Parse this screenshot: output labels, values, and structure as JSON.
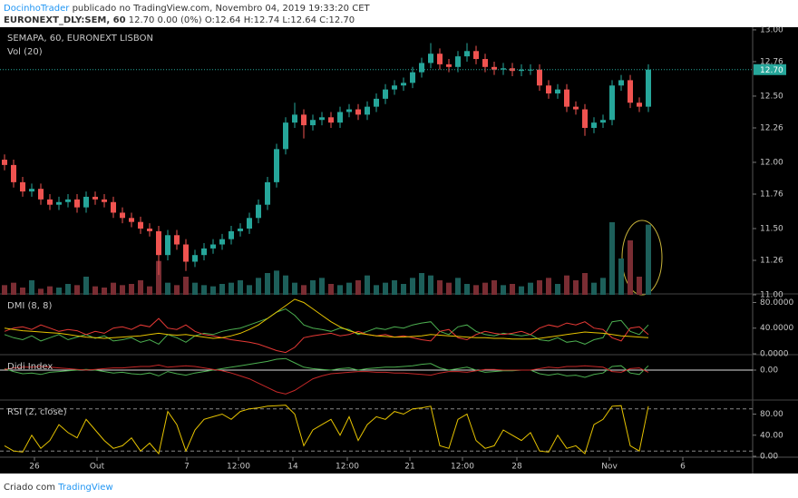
{
  "header": {
    "author": "DocinhoTrader",
    "published": "publicado no TradingView.com, Novembro 04, 2019 19:33:20 CET",
    "symbol": "EURONEXT_DLY:SEM, 60",
    "quote": "12.70 0.00 (0%) O:12.64 H:12.74 L:12.64 C:12.70"
  },
  "footer": {
    "created": "Criado com",
    "brand": "TradingView"
  },
  "chart_data": [
    {
      "type": "candlestick",
      "title": "SEMAPA, 60, EURONEXT LISBON",
      "subtitle": "Vol (20)",
      "up_color": "#26a69a",
      "down_color": "#ef5350",
      "up_volume_color": "#1d5f5a",
      "down_volume_color": "#7a2d33",
      "ylim": [
        11.0,
        13.02
      ],
      "yticks": [
        {
          "value": 13,
          "label": "13.00"
        },
        12.76,
        {
          "value": 12.5,
          "label": "12.50"
        },
        12.26,
        {
          "value": 12,
          "label": "12.00"
        },
        11.76,
        {
          "value": 11.5,
          "label": "11.50"
        },
        11.26,
        {
          "value": 11,
          "label": "11.00"
        }
      ],
      "last_price": {
        "value": 12.7,
        "label": "12.70"
      },
      "open": [
        12.02,
        11.98,
        11.85,
        11.78,
        11.8,
        11.72,
        11.68,
        11.7,
        11.72,
        11.66,
        11.74,
        11.72,
        11.7,
        11.62,
        11.58,
        11.55,
        11.5,
        11.48,
        11.3,
        11.45,
        11.38,
        11.25,
        11.3,
        11.35,
        11.38,
        11.42,
        11.48,
        11.5,
        11.58,
        11.68,
        11.85,
        12.1,
        12.3,
        12.36,
        12.28,
        12.32,
        12.34,
        12.3,
        12.38,
        12.4,
        12.36,
        12.42,
        12.48,
        12.55,
        12.58,
        12.6,
        12.68,
        12.75,
        12.82,
        12.74,
        12.72,
        12.8,
        12.84,
        12.78,
        12.72,
        12.7,
        12.71,
        12.69,
        12.7,
        12.7,
        12.58,
        12.52,
        12.55,
        12.42,
        12.4,
        12.26,
        12.3,
        12.32,
        12.58,
        12.62,
        12.45,
        12.42
      ],
      "high": [
        12.06,
        12.02,
        11.89,
        11.84,
        11.84,
        11.76,
        11.74,
        11.76,
        11.76,
        11.78,
        11.78,
        11.76,
        11.74,
        11.66,
        11.62,
        11.59,
        11.54,
        11.52,
        11.49,
        11.49,
        11.42,
        11.34,
        11.39,
        11.42,
        11.46,
        11.52,
        11.54,
        11.62,
        11.72,
        11.89,
        12.14,
        12.34,
        12.45,
        12.4,
        12.36,
        12.38,
        12.38,
        12.42,
        12.44,
        12.44,
        12.46,
        12.52,
        12.59,
        12.62,
        12.64,
        12.72,
        12.79,
        12.9,
        12.86,
        12.78,
        12.84,
        12.9,
        12.88,
        12.82,
        12.76,
        12.75,
        12.75,
        12.74,
        12.74,
        12.74,
        12.62,
        12.59,
        12.59,
        12.46,
        12.44,
        12.34,
        12.36,
        12.62,
        12.66,
        12.66,
        12.49,
        12.74
      ],
      "low": [
        11.94,
        11.81,
        11.74,
        11.74,
        11.68,
        11.64,
        11.64,
        11.66,
        11.62,
        11.62,
        11.68,
        11.66,
        11.58,
        11.54,
        11.51,
        11.46,
        11.44,
        11.15,
        11.26,
        11.34,
        11.18,
        11.21,
        11.26,
        11.31,
        11.34,
        11.38,
        11.44,
        11.46,
        11.54,
        11.64,
        11.81,
        12.06,
        12.26,
        12.18,
        12.24,
        12.28,
        12.26,
        12.26,
        12.34,
        12.32,
        12.32,
        12.38,
        12.44,
        12.51,
        12.54,
        12.56,
        12.64,
        12.71,
        12.7,
        12.68,
        12.68,
        12.76,
        12.74,
        12.68,
        12.66,
        12.66,
        12.65,
        12.65,
        12.66,
        12.54,
        12.48,
        12.48,
        12.38,
        12.36,
        12.2,
        12.22,
        12.26,
        12.28,
        12.54,
        12.41,
        12.38,
        12.38
      ],
      "close": [
        11.98,
        11.85,
        11.78,
        11.8,
        11.72,
        11.68,
        11.7,
        11.72,
        11.66,
        11.74,
        11.72,
        11.7,
        11.62,
        11.58,
        11.55,
        11.5,
        11.48,
        11.3,
        11.45,
        11.38,
        11.25,
        11.3,
        11.35,
        11.38,
        11.42,
        11.48,
        11.5,
        11.58,
        11.68,
        11.85,
        12.1,
        12.3,
        12.36,
        12.28,
        12.32,
        12.34,
        12.3,
        12.38,
        12.4,
        12.36,
        12.42,
        12.48,
        12.55,
        12.58,
        12.6,
        12.68,
        12.75,
        12.82,
        12.74,
        12.72,
        12.8,
        12.84,
        12.78,
        12.72,
        12.7,
        12.71,
        12.69,
        12.7,
        12.7,
        12.58,
        12.52,
        12.55,
        12.42,
        12.4,
        12.26,
        12.3,
        12.32,
        12.58,
        12.62,
        12.45,
        12.42,
        12.7
      ],
      "volume": [
        8,
        10,
        6,
        12,
        5,
        7,
        6,
        9,
        8,
        15,
        7,
        6,
        10,
        8,
        9,
        12,
        7,
        28,
        10,
        8,
        15,
        10,
        8,
        7,
        9,
        10,
        12,
        8,
        14,
        18,
        20,
        16,
        10,
        8,
        12,
        14,
        9,
        8,
        10,
        12,
        16,
        8,
        10,
        12,
        9,
        14,
        18,
        16,
        12,
        10,
        14,
        9,
        8,
        10,
        12,
        8,
        9,
        7,
        10,
        12,
        14,
        9,
        16,
        12,
        18,
        10,
        14,
        60,
        30,
        45,
        15,
        58
      ]
    },
    {
      "type": "line",
      "title": "DMI (8, 8)",
      "ylim": [
        0,
        92
      ],
      "yticks": [
        {
          "value": 80,
          "label": "80.0000"
        },
        {
          "value": 40,
          "label": "40.0000"
        },
        {
          "value": 0,
          "label": "0.0000"
        }
      ],
      "series": [
        {
          "color": "#4caf50",
          "values": [
            30,
            25,
            22,
            28,
            20,
            25,
            30,
            22,
            26,
            30,
            24,
            28,
            20,
            22,
            25,
            18,
            22,
            15,
            30,
            25,
            18,
            28,
            32,
            30,
            35,
            38,
            40,
            45,
            50,
            55,
            65,
            70,
            60,
            45,
            40,
            38,
            35,
            40,
            38,
            30,
            35,
            40,
            38,
            42,
            40,
            45,
            48,
            50,
            35,
            30,
            42,
            45,
            35,
            30,
            28,
            32,
            30,
            28,
            30,
            22,
            20,
            25,
            18,
            20,
            15,
            22,
            25,
            50,
            52,
            35,
            30,
            45
          ]
        },
        {
          "color": "#e53935",
          "values": [
            35,
            40,
            42,
            38,
            45,
            40,
            35,
            38,
            36,
            30,
            35,
            32,
            40,
            42,
            38,
            45,
            42,
            55,
            40,
            38,
            45,
            35,
            30,
            28,
            25,
            22,
            20,
            18,
            15,
            10,
            5,
            2,
            10,
            25,
            28,
            30,
            32,
            28,
            30,
            35,
            30,
            28,
            30,
            26,
            28,
            25,
            22,
            20,
            35,
            38,
            25,
            22,
            30,
            35,
            32,
            30,
            32,
            35,
            30,
            40,
            45,
            42,
            48,
            45,
            50,
            40,
            38,
            25,
            20,
            40,
            42,
            30
          ]
        },
        {
          "color": "#e6c300",
          "values": [
            40,
            38,
            36,
            35,
            34,
            33,
            32,
            30,
            28,
            26,
            25,
            24,
            25,
            26,
            27,
            28,
            30,
            32,
            30,
            29,
            30,
            28,
            26,
            24,
            25,
            28,
            32,
            38,
            45,
            55,
            65,
            75,
            85,
            80,
            70,
            60,
            50,
            42,
            36,
            32,
            30,
            28,
            27,
            26,
            26,
            27,
            28,
            30,
            29,
            28,
            27,
            26,
            25,
            25,
            24,
            24,
            23,
            23,
            23,
            24,
            26,
            28,
            30,
            32,
            34,
            33,
            32,
            30,
            28,
            27,
            26,
            25
          ]
        }
      ]
    },
    {
      "type": "line",
      "title": "Didi Index",
      "ylim": [
        -0.4,
        0.2
      ],
      "grid": true,
      "yticks": [
        {
          "value": 0,
          "label": "0.00"
        }
      ],
      "series": [
        {
          "color": "#4caf50",
          "values": [
            0.02,
            -0.02,
            -0.05,
            -0.04,
            -0.06,
            -0.03,
            -0.02,
            -0.01,
            0,
            0.01,
            0,
            -0.02,
            -0.04,
            -0.03,
            -0.05,
            -0.06,
            -0.04,
            -0.08,
            -0.02,
            -0.05,
            -0.07,
            -0.04,
            -0.02,
            0,
            0.02,
            0.04,
            0.06,
            0.08,
            0.1,
            0.12,
            0.15,
            0.16,
            0.1,
            0.04,
            0.02,
            0.01,
            0,
            0.02,
            0.03,
            0,
            0.02,
            0.03,
            0.04,
            0.04,
            0.05,
            0.06,
            0.08,
            0.09,
            0.03,
            0,
            0.02,
            0.04,
            0,
            -0.03,
            -0.02,
            -0.01,
            -0.01,
            0,
            0,
            -0.05,
            -0.07,
            -0.05,
            -0.08,
            -0.07,
            -0.1,
            -0.06,
            -0.04,
            0.05,
            0.06,
            -0.04,
            -0.06,
            0.06
          ]
        },
        {
          "color": "#c62828",
          "values": [
            0.01,
            0.03,
            0.04,
            0.04,
            0.05,
            0.04,
            0.03,
            0.02,
            0.01,
            0,
            0.01,
            0.02,
            0.03,
            0.03,
            0.04,
            0.05,
            0.05,
            0.07,
            0.04,
            0.05,
            0.06,
            0.05,
            0.03,
            0.01,
            -0.01,
            -0.04,
            -0.08,
            -0.12,
            -0.18,
            -0.24,
            -0.3,
            -0.33,
            -0.28,
            -0.2,
            -0.12,
            -0.08,
            -0.05,
            -0.04,
            -0.03,
            -0.02,
            -0.02,
            -0.03,
            -0.03,
            -0.04,
            -0.04,
            -0.05,
            -0.06,
            -0.07,
            -0.04,
            -0.02,
            -0.02,
            -0.03,
            -0.01,
            0.01,
            0.01,
            0,
            0,
            0,
            0,
            0.02,
            0.04,
            0.03,
            0.05,
            0.05,
            0.06,
            0.05,
            0.04,
            -0.02,
            -0.03,
            0.02,
            0.03,
            -0.03
          ]
        }
      ]
    },
    {
      "type": "line",
      "title": "RSI (2, close)",
      "ylim": [
        0,
        105
      ],
      "levels": [
        90,
        10
      ],
      "yticks": [
        {
          "value": 80,
          "label": "80.00"
        },
        {
          "value": 40,
          "label": "40.00"
        },
        {
          "value": 0,
          "label": "0.00"
        }
      ],
      "xlim": [
        -0.5,
        82.5
      ],
      "xticks": [
        {
          "value": 3.3,
          "label": "26"
        },
        {
          "value": 10.2,
          "label": "Out"
        },
        {
          "value": 20.1,
          "label": "7"
        },
        {
          "value": 25.8,
          "label": "12:00"
        },
        {
          "value": 31.8,
          "label": "14"
        },
        {
          "value": 37.8,
          "label": "12:00"
        },
        {
          "value": 44.7,
          "label": "21"
        },
        {
          "value": 50.5,
          "label": "12:00"
        },
        {
          "value": 56.5,
          "label": "28"
        },
        {
          "value": 66.7,
          "label": "Nov"
        },
        {
          "value": 74.8,
          "label": "6"
        }
      ],
      "series": [
        {
          "color": "#e6c300",
          "values": [
            20,
            10,
            8,
            40,
            15,
            30,
            60,
            45,
            35,
            70,
            50,
            30,
            15,
            20,
            35,
            10,
            25,
            5,
            85,
            60,
            10,
            50,
            70,
            75,
            80,
            70,
            85,
            90,
            92,
            95,
            96,
            97,
            80,
            20,
            50,
            60,
            70,
            40,
            75,
            30,
            60,
            75,
            70,
            85,
            80,
            90,
            92,
            95,
            20,
            15,
            70,
            80,
            30,
            15,
            20,
            50,
            40,
            30,
            45,
            10,
            8,
            40,
            15,
            20,
            5,
            60,
            70,
            95,
            96,
            20,
            10,
            95
          ]
        }
      ]
    }
  ]
}
